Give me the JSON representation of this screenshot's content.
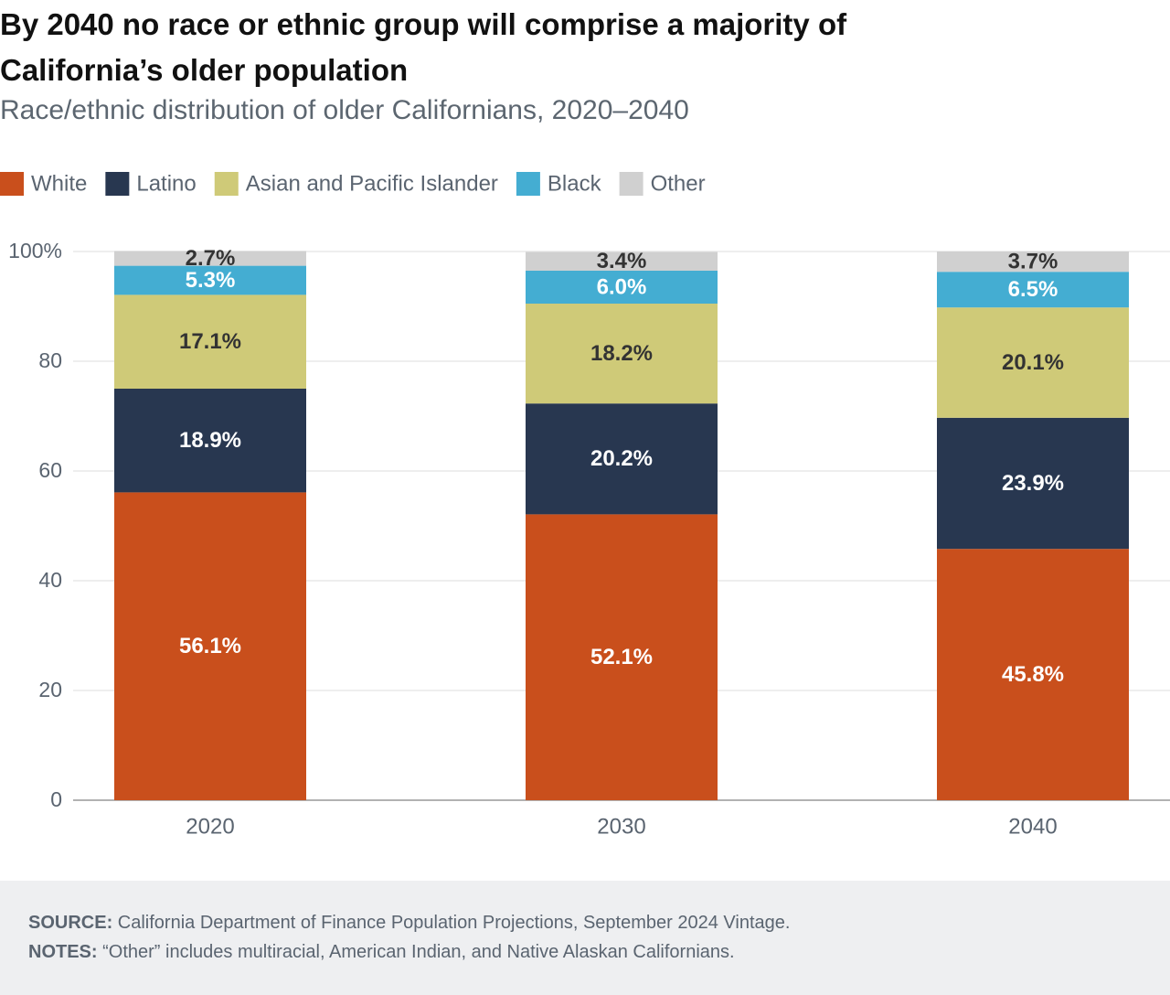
{
  "chart_data": {
    "type": "stacked_bar",
    "title": "By 2040 no race or ethnic group will comprise a majority of California’s older population",
    "subtitle": "Race/ethnic distribution of older Californians, 2020–2040",
    "categories": [
      "2020",
      "2030",
      "2040"
    ],
    "series": [
      {
        "name": "White",
        "color": "#c94f1c",
        "values": [
          56.1,
          52.1,
          45.8
        ],
        "value_labels": [
          "56.1%",
          "52.1%",
          "45.8%"
        ]
      },
      {
        "name": "Latino",
        "color": "#283750",
        "values": [
          18.9,
          20.2,
          23.9
        ],
        "value_labels": [
          "18.9%",
          "20.2%",
          "23.9%"
        ]
      },
      {
        "name": "Asian and Pacific Islander",
        "color": "#cfca78",
        "values": [
          17.1,
          18.2,
          20.1
        ],
        "value_labels": [
          "17.1%",
          "18.2%",
          "20.1%"
        ]
      },
      {
        "name": "Black",
        "color": "#44add2",
        "values": [
          5.3,
          6.0,
          6.5
        ],
        "value_labels": [
          "5.3%",
          "6.0%",
          "6.5%"
        ]
      },
      {
        "name": "Other",
        "color": "#d0d0d0",
        "values": [
          2.7,
          3.4,
          3.7
        ],
        "value_labels": [
          "2.7%",
          "3.4%",
          "3.7%"
        ]
      }
    ],
    "ylim": [
      0,
      100
    ],
    "yticks": [
      0,
      20,
      40,
      60,
      80,
      {
        "value": 100,
        "label": "100%"
      }
    ],
    "grid": true,
    "legend": "top-left",
    "source": {
      "label": "SOURCE:",
      "text": "California Department of Finance Population Projections, September 2024 Vintage."
    },
    "notes": {
      "label": "NOTES:",
      "text": "“Other” includes multiracial, American Indian, and Native Alaskan Californians."
    }
  }
}
